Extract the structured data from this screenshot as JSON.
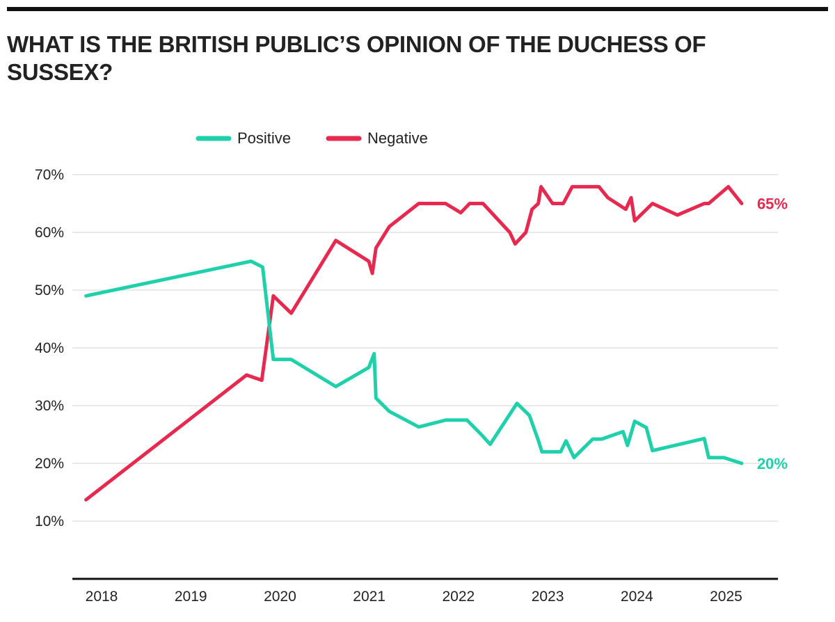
{
  "title": "WHAT IS THE BRITISH PUBLIC’S OPINION OF THE DUCHESS OF SUSSEX?",
  "chart_data": {
    "type": "line",
    "title": "WHAT IS THE BRITISH PUBLIC’S OPINION OF THE DUCHESS OF SUSSEX?",
    "xlabel": "",
    "ylabel": "",
    "x_ticks": [
      "2018",
      "2019",
      "2020",
      "2021",
      "2022",
      "2023",
      "2024",
      "2025"
    ],
    "y_ticks": [
      "10%",
      "20%",
      "30%",
      "40%",
      "50%",
      "60%",
      "70%"
    ],
    "xlim": [
      2018.0,
      2025.55
    ],
    "ylim": [
      0,
      70
    ],
    "grid": "horizontal",
    "legend": "top",
    "colors": {
      "Positive": "#1fd1ab",
      "Negative": "#e8294f"
    },
    "series": [
      {
        "name": "Positive",
        "end_label": "20%",
        "points": [
          [
            2017.95,
            49
          ],
          [
            2019.8,
            55
          ],
          [
            2019.93,
            54
          ],
          [
            2020.05,
            38
          ],
          [
            2020.25,
            38
          ],
          [
            2020.75,
            33.3
          ],
          [
            2021.12,
            36.6
          ],
          [
            2021.18,
            39
          ],
          [
            2021.2,
            31.3
          ],
          [
            2021.35,
            29
          ],
          [
            2021.68,
            26.3
          ],
          [
            2021.98,
            27.5
          ],
          [
            2022.22,
            27.5
          ],
          [
            2022.38,
            25
          ],
          [
            2022.48,
            23.3
          ],
          [
            2022.78,
            30.4
          ],
          [
            2022.92,
            28.3
          ],
          [
            2023.02,
            24
          ],
          [
            2023.06,
            22
          ],
          [
            2023.27,
            22
          ],
          [
            2023.33,
            23.9
          ],
          [
            2023.42,
            21
          ],
          [
            2023.63,
            24.2
          ],
          [
            2023.73,
            24.2
          ],
          [
            2023.97,
            25.5
          ],
          [
            2024.02,
            23.1
          ],
          [
            2024.1,
            27.3
          ],
          [
            2024.23,
            26.2
          ],
          [
            2024.3,
            22.2
          ],
          [
            2024.88,
            24.3
          ],
          [
            2024.93,
            21
          ],
          [
            2025.1,
            21
          ],
          [
            2025.3,
            20
          ]
        ]
      },
      {
        "name": "Negative",
        "end_label": "65%",
        "points": [
          [
            2017.95,
            13.7
          ],
          [
            2019.75,
            35.3
          ],
          [
            2019.92,
            34.4
          ],
          [
            2020.05,
            49
          ],
          [
            2020.25,
            46
          ],
          [
            2020.75,
            58.6
          ],
          [
            2021.12,
            55
          ],
          [
            2021.16,
            52.9
          ],
          [
            2021.2,
            57.3
          ],
          [
            2021.35,
            61
          ],
          [
            2021.68,
            65
          ],
          [
            2021.98,
            65
          ],
          [
            2022.15,
            63.4
          ],
          [
            2022.25,
            65
          ],
          [
            2022.4,
            65
          ],
          [
            2022.7,
            60
          ],
          [
            2022.76,
            58
          ],
          [
            2022.88,
            60
          ],
          [
            2022.95,
            64
          ],
          [
            2023.02,
            65
          ],
          [
            2023.05,
            67.9
          ],
          [
            2023.18,
            65
          ],
          [
            2023.3,
            65
          ],
          [
            2023.4,
            67.9
          ],
          [
            2023.7,
            67.9
          ],
          [
            2023.8,
            66
          ],
          [
            2024.0,
            64
          ],
          [
            2024.06,
            66
          ],
          [
            2024.1,
            62
          ],
          [
            2024.3,
            65
          ],
          [
            2024.58,
            63
          ],
          [
            2024.88,
            65
          ],
          [
            2024.93,
            65
          ],
          [
            2025.15,
            67.9
          ],
          [
            2025.3,
            65
          ]
        ]
      }
    ]
  }
}
